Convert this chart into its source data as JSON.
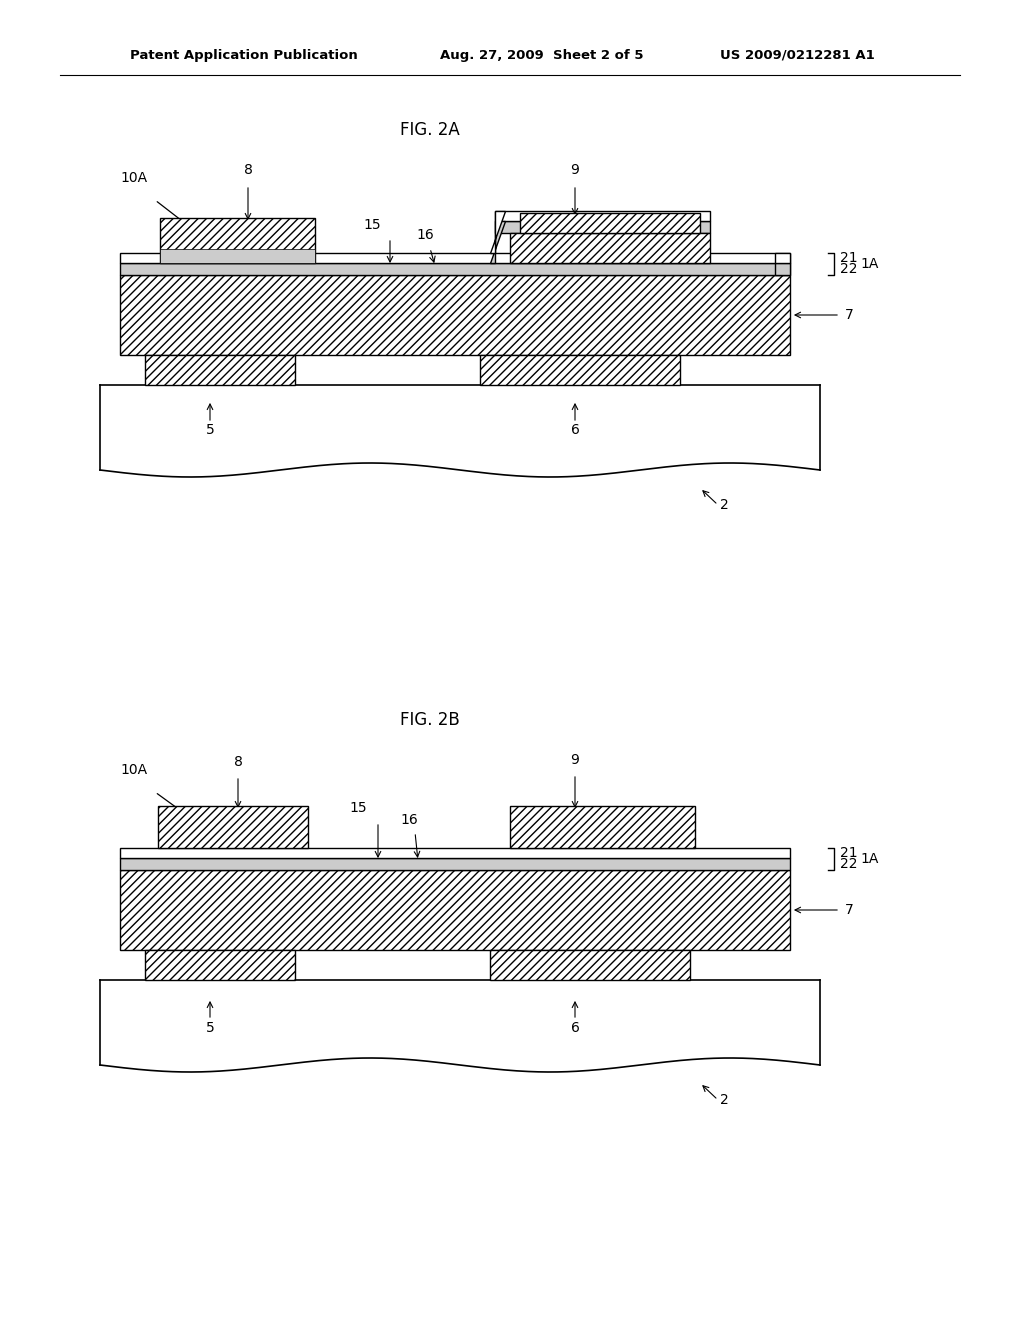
{
  "bg_color": "#ffffff",
  "header_left": "Patent Application Publication",
  "header_mid": "Aug. 27, 2009  Sheet 2 of 5",
  "header_right": "US 2009/0212281 A1",
  "fig2a_title": "FIG. 2A",
  "fig2b_title": "FIG. 2B",
  "label_fontsize": 10,
  "title_fontsize": 12,
  "header_fontsize": 9.5
}
